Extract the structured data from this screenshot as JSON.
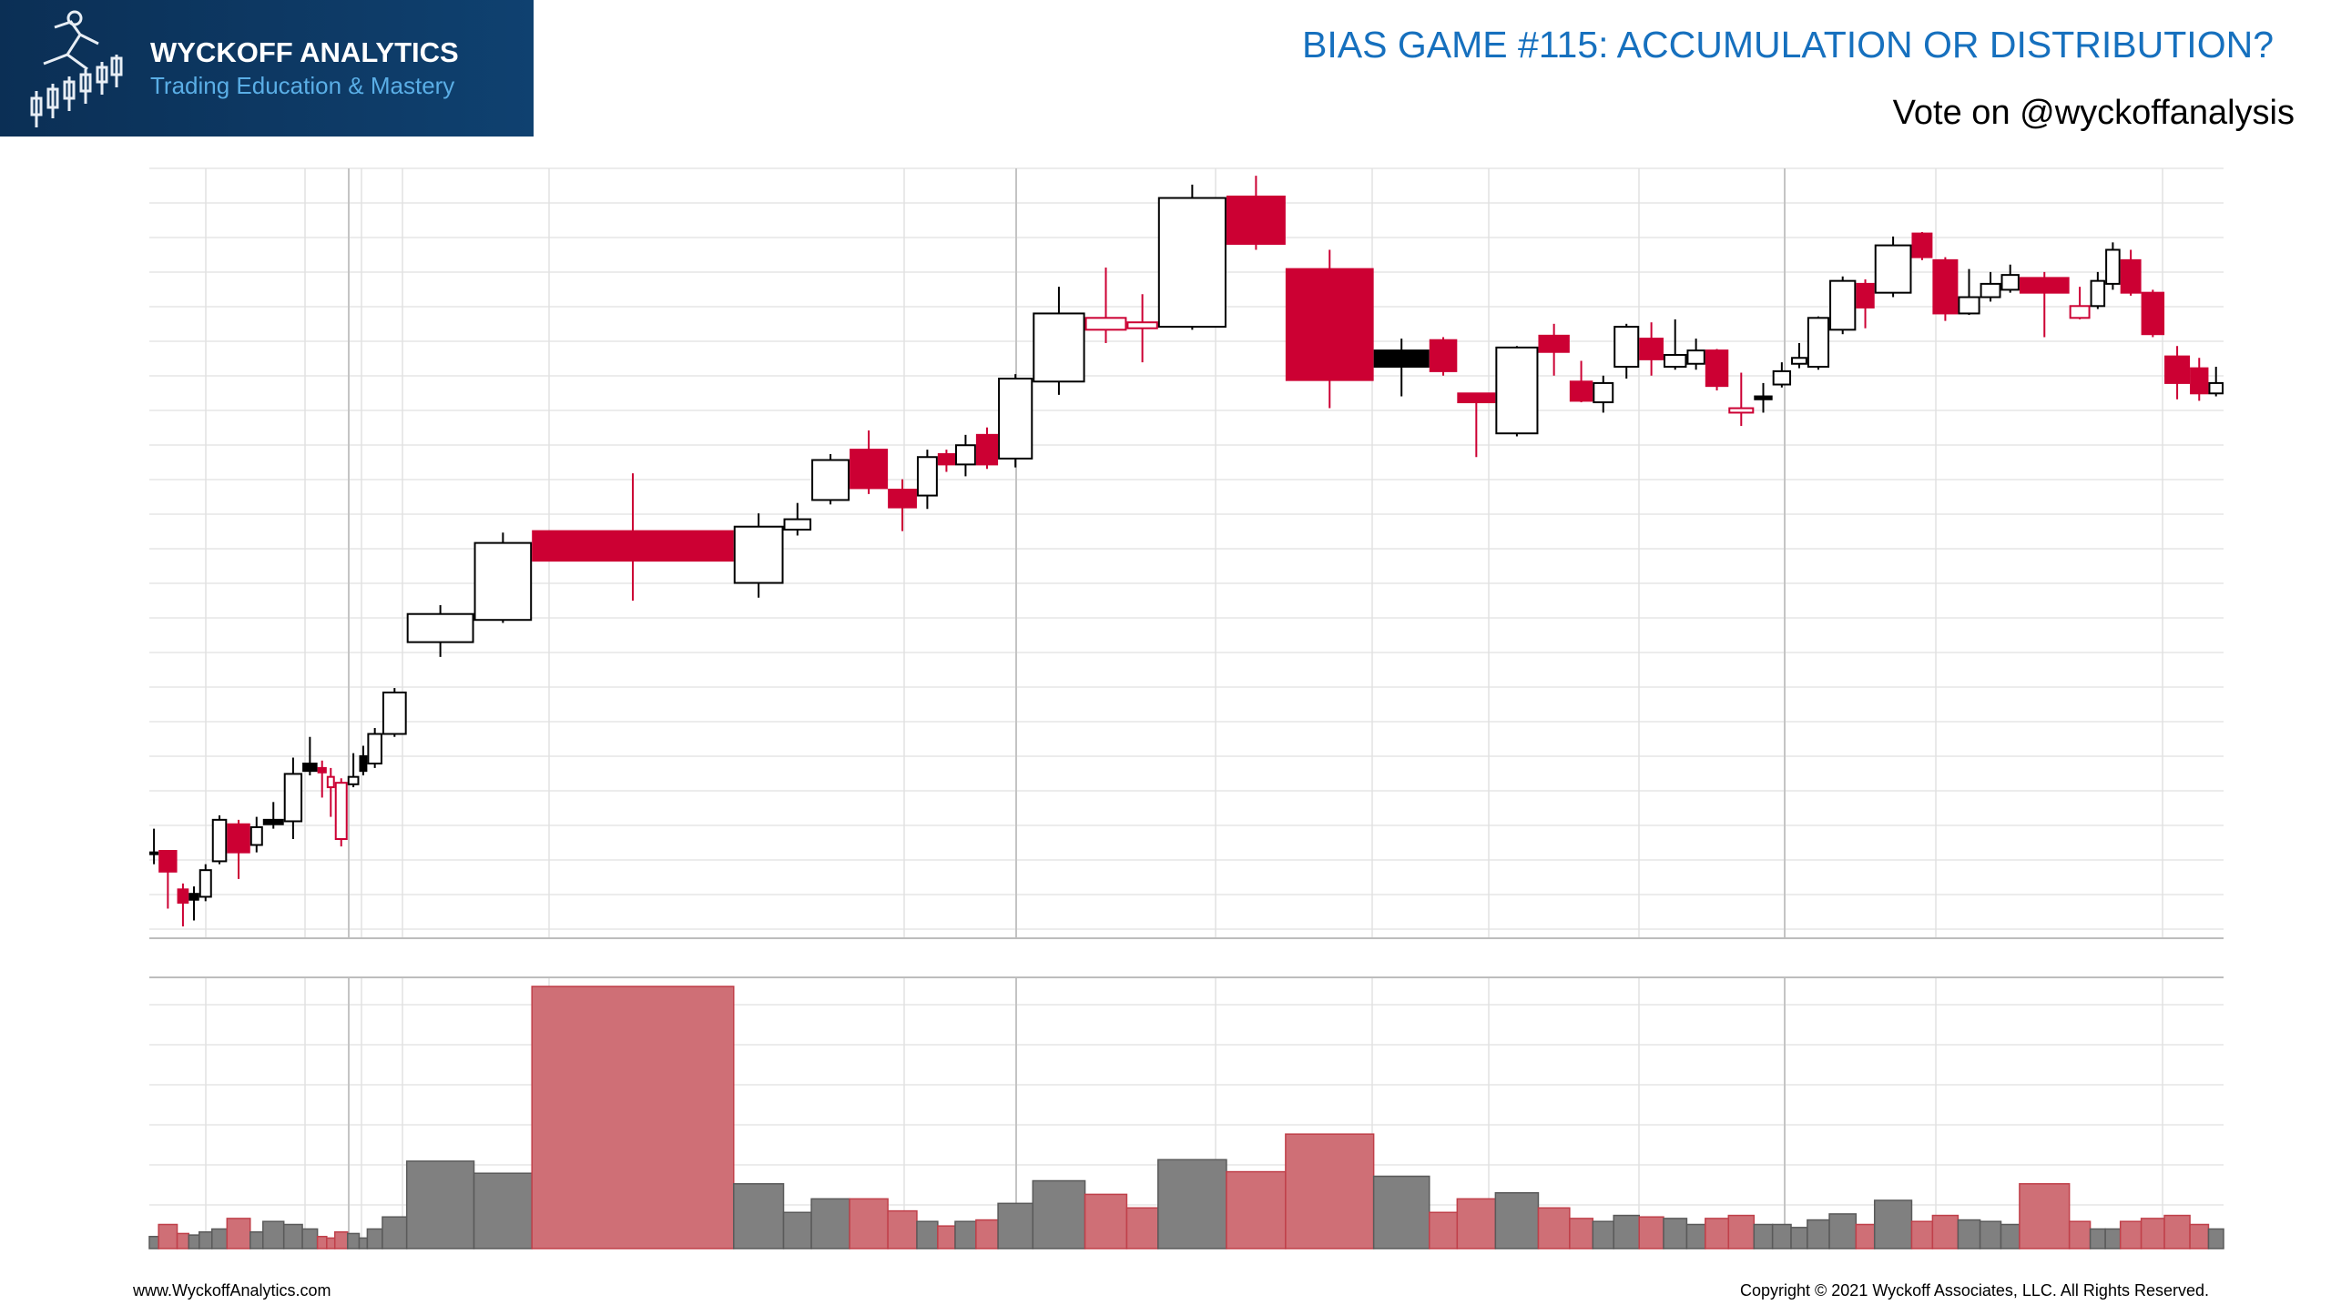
{
  "header": {
    "brand": "WYCKOFF ANALYTICS",
    "tagline": "Trading Education & Mastery"
  },
  "chart_data": {
    "type": "candlestick",
    "title": "BIAS GAME #115: ACCUMULATION OR DISTRIBUTION?",
    "subtitle": "Vote on @wyckoffanalysis",
    "ylim": [
      10,
      530
    ],
    "volume_ylim": [
      0,
      180
    ],
    "grid": true,
    "colors": {
      "up": "#000000",
      "down": "#cc0033",
      "volume_up": "#808080",
      "volume_down": "#cf6f76"
    },
    "open": [
      67,
      69,
      43,
      40,
      38,
      62,
      87,
      73,
      90,
      89,
      128,
      125,
      112,
      77,
      114,
      133,
      128,
      148,
      210,
      225,
      285,
      250,
      286,
      306,
      340,
      313,
      309,
      337,
      330,
      350,
      334,
      386,
      421,
      422,
      423,
      511,
      462,
      407,
      414,
      378,
      351,
      417,
      386,
      372,
      396,
      415,
      396,
      398,
      407,
      365,
      376,
      384,
      398,
      396,
      421,
      452,
      446,
      486,
      468,
      432,
      443,
      448,
      456,
      429,
      437,
      452,
      468,
      446,
      403,
      395,
      378
    ],
    "high": [
      84,
      69,
      47,
      45,
      60,
      93,
      90,
      92,
      102,
      132,
      146,
      130,
      125,
      118,
      135,
      140,
      152,
      179,
      235,
      284,
      324,
      297,
      304,
      337,
      353,
      320,
      340,
      340,
      350,
      355,
      391,
      450,
      463,
      445,
      519,
      525,
      475,
      415,
      416,
      378,
      410,
      425,
      400,
      390,
      425,
      426,
      428,
      415,
      408,
      392,
      385,
      399,
      412,
      430,
      457,
      455,
      484,
      487,
      470,
      462,
      460,
      465,
      460,
      450,
      460,
      480,
      475,
      448,
      410,
      402,
      396
    ],
    "low": [
      60,
      30,
      18,
      22,
      35,
      60,
      50,
      68,
      84,
      77,
      120,
      105,
      92,
      72,
      112,
      120,
      125,
      146,
      200,
      223,
      238,
      240,
      282,
      303,
      310,
      285,
      300,
      325,
      322,
      327,
      328,
      377,
      412,
      399,
      421,
      475,
      368,
      376,
      390,
      335,
      349,
      390,
      372,
      365,
      388,
      390,
      394,
      394,
      380,
      356,
      365,
      382,
      395,
      394,
      418,
      422,
      443,
      468,
      427,
      431,
      440,
      446,
      416,
      428,
      435,
      448,
      444,
      416,
      374,
      373,
      376
    ],
    "close": [
      68,
      55,
      34,
      36,
      56,
      90,
      68,
      85,
      87,
      121,
      123,
      122,
      119,
      115,
      119,
      123,
      148,
      176,
      229,
      277,
      265,
      288,
      293,
      333,
      314,
      301,
      335,
      330,
      343,
      330,
      388,
      432,
      429,
      426,
      510,
      479,
      387,
      396,
      393,
      372,
      409,
      406,
      373,
      385,
      423,
      401,
      404,
      407,
      383,
      368,
      374,
      393,
      402,
      429,
      454,
      436,
      478,
      470,
      432,
      443,
      452,
      458,
      446,
      437,
      454,
      475,
      446,
      418,
      385,
      378,
      385
    ],
    "volume": [
      8,
      16,
      10,
      9,
      11,
      13,
      20,
      11,
      18,
      16,
      13,
      8,
      7,
      11,
      10,
      7,
      13,
      21,
      58,
      50,
      174,
      43,
      24,
      33,
      33,
      25,
      18,
      15,
      18,
      19,
      30,
      45,
      36,
      27,
      59,
      51,
      76,
      48,
      24,
      33,
      37,
      27,
      20,
      18,
      22,
      21,
      20,
      16,
      20,
      22,
      16,
      16,
      14,
      19,
      23,
      16,
      32,
      18,
      22,
      19,
      18,
      16,
      43,
      18,
      13,
      13,
      18,
      20,
      22,
      16,
      13
    ]
  },
  "footer": {
    "website": "www.WyckoffAnalytics.com",
    "copyright": "Copyright © 2021 Wyckoff Associates, LLC. All Rights Reserved."
  }
}
